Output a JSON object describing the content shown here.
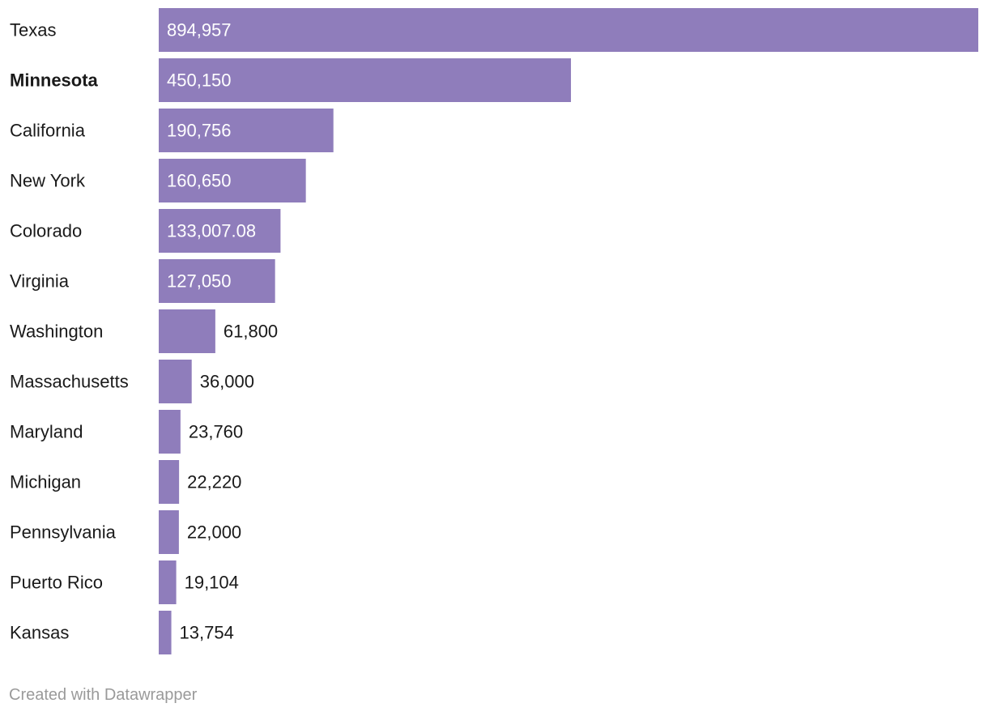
{
  "chart_data": {
    "type": "bar",
    "orientation": "horizontal",
    "title": "",
    "xlabel": "",
    "ylabel": "",
    "xlim": [
      0,
      894957
    ],
    "grid": false,
    "bar_color": "#8f7dbb",
    "categories": [
      "Texas",
      "Minnesota",
      "California",
      "New York",
      "Colorado",
      "Virginia",
      "Washington",
      "Massachusetts",
      "Maryland",
      "Michigan",
      "Pennsylvania",
      "Puerto Rico",
      "Kansas"
    ],
    "values": [
      894957,
      450150,
      190756,
      160650,
      133007.08,
      127050,
      61800,
      36000,
      23760,
      22220,
      22000,
      19104,
      13754
    ],
    "value_labels": [
      "894,957",
      "450,150",
      "190,756",
      "160,650",
      "133,007.08",
      "127,050",
      "61,800",
      "36,000",
      "23,760",
      "22,220",
      "22,000",
      "19,104",
      "13,754"
    ],
    "highlighted_category": "Minnesota"
  },
  "footer": {
    "credit": "Created with Datawrapper"
  }
}
